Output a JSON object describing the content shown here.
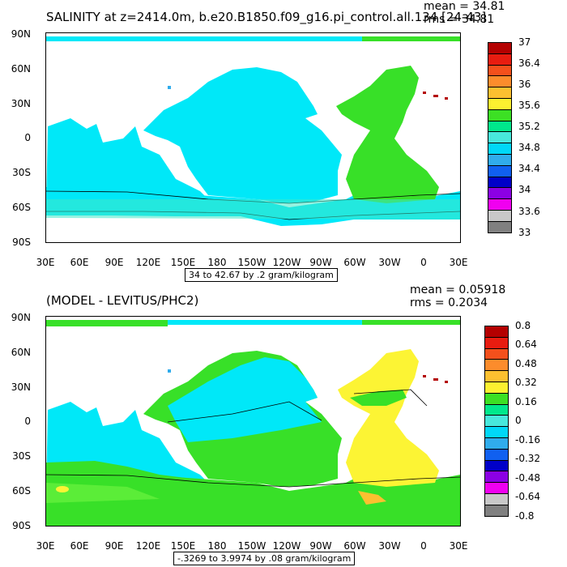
{
  "top_panel": {
    "title": "SALINITY at z=2414.0m, b.e20.B1850.f09_g16.pi_control.all.134 [24-43]",
    "mean": "mean = 34.81",
    "rms": "rms = 34.81",
    "range_label": "34 to 42.67 by .2 gram/kilogram",
    "legend_labels": [
      "37",
      "36.4",
      "36",
      "35.6",
      "35.2",
      "34.8",
      "34.4",
      "34",
      "33.6",
      "33"
    ],
    "legend_colors": [
      "#b40000",
      "#e81c10",
      "#f4501c",
      "#fc8c2c",
      "#fcc030",
      "#fcf030",
      "#3ce024",
      "#00e88c",
      "#48e8dc",
      "#00d8f8",
      "#30acec",
      "#1060f0",
      "#0000c8",
      "#8c00e4",
      "#f000f0",
      "#c8c8c8",
      "#808080"
    ]
  },
  "bottom_panel": {
    "title": "(MODEL - LEVITUS/PHC2)",
    "mean": "mean = 0.05918",
    "rms": "rms = 0.2034",
    "range_label": "-.3269 to 3.9974 by .08 gram/kilogram",
    "legend_labels": [
      "0.8",
      "0.64",
      "0.48",
      "0.32",
      "0.16",
      "0",
      "-0.16",
      "-0.32",
      "-0.48",
      "-0.64",
      "-0.8"
    ],
    "legend_colors": [
      "#b40000",
      "#e81c10",
      "#f4501c",
      "#fc8c2c",
      "#fcc030",
      "#fcf030",
      "#3ce024",
      "#00e88c",
      "#48e8dc",
      "#00d8f8",
      "#30acec",
      "#1060f0",
      "#0000c8",
      "#8c00e4",
      "#f000f0",
      "#c8c8c8",
      "#808080"
    ]
  },
  "axes": {
    "y_labels": [
      "90N",
      "60N",
      "30N",
      "0",
      "30S",
      "60S",
      "90S"
    ],
    "x_labels": [
      "30E",
      "60E",
      "90E",
      "120E",
      "150E",
      "180",
      "150W",
      "120W",
      "90W",
      "60W",
      "30W",
      "0",
      "30E"
    ]
  },
  "colors": {
    "cyan": "#00e8f8",
    "teal": "#40e8c8",
    "green": "#38e028",
    "yellow": "#fcf434",
    "orange": "#fcc030",
    "dark_red": "#b40000",
    "blue": "#30acec"
  }
}
